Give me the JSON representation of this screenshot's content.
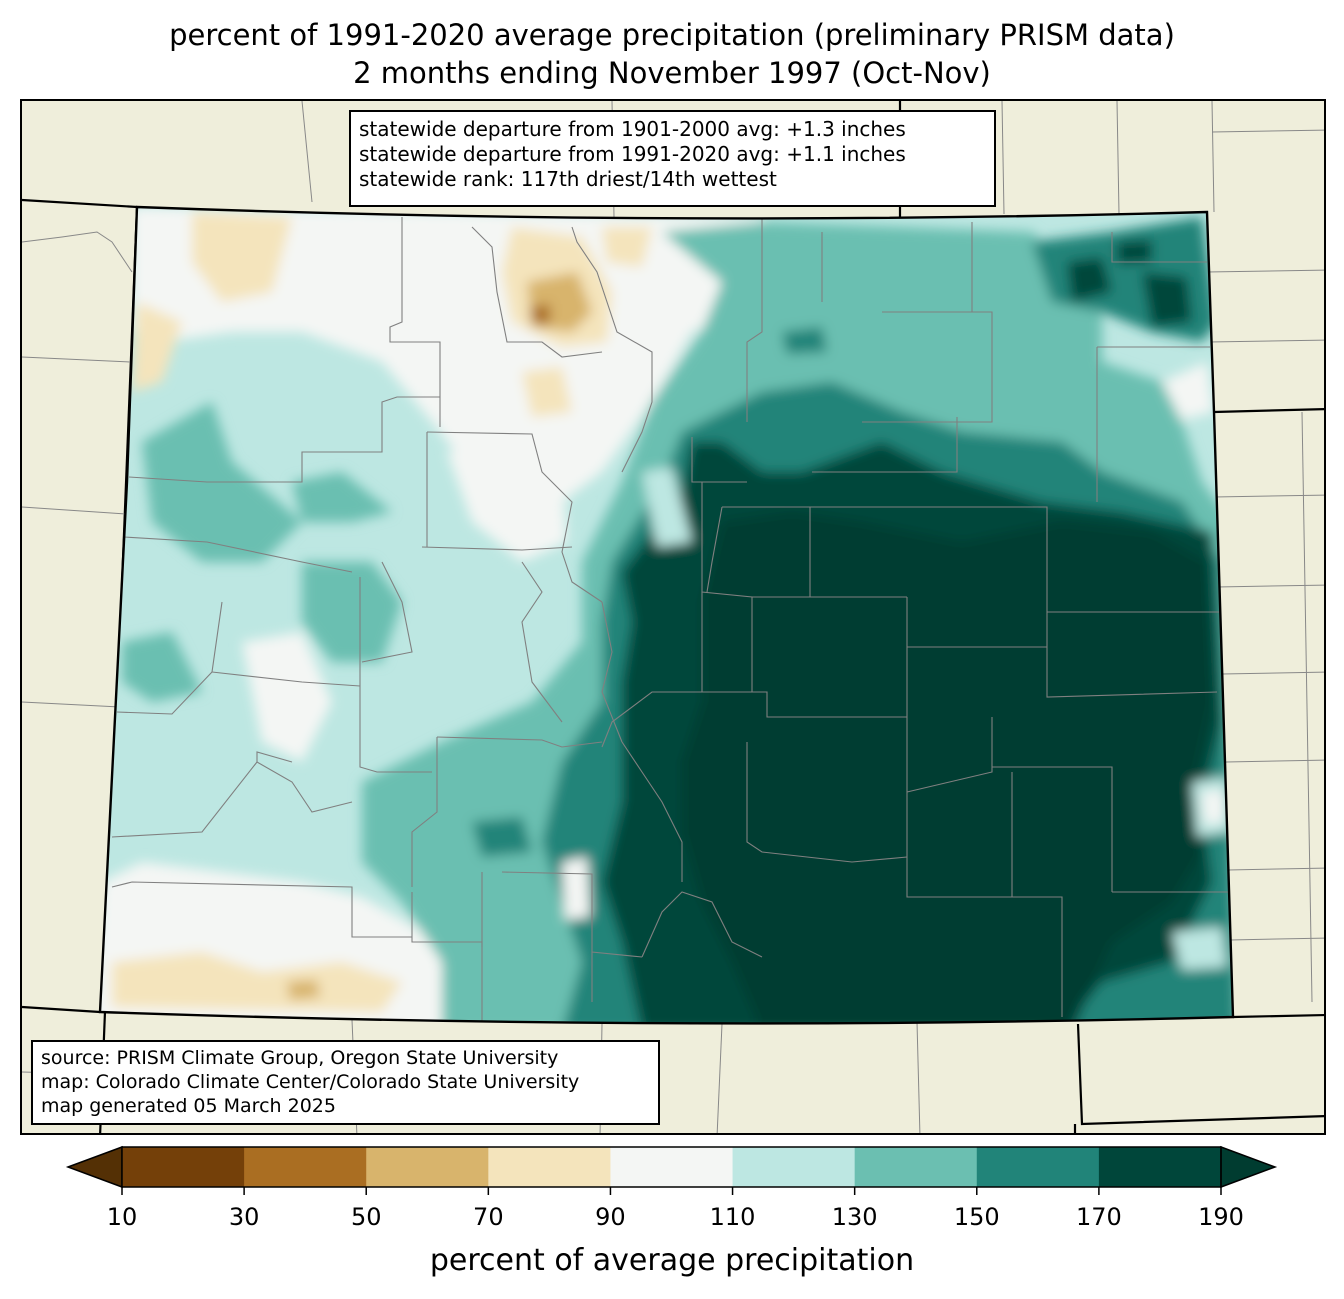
{
  "title": {
    "line1": "percent of 1991-2020 average precipitation (preliminary PRISM data)",
    "line2": "2 months ending November 1997 (Oct-Nov)"
  },
  "stats": {
    "line1": "statewide departure from 1901-2000 avg: +1.3 inches",
    "line2": "statewide departure from 1991-2020 avg: +1.1 inches",
    "line3": "statewide rank: 117th driest/14th wettest"
  },
  "source": {
    "line1": "source: PRISM Climate Group, Oregon State University",
    "line2": "map: Colorado Climate Center/Colorado State University",
    "line3": "map generated 05 March 2025"
  },
  "colorbar": {
    "label": "percent of average precipitation",
    "ticks": [
      "10",
      "30",
      "50",
      "70",
      "90",
      "110",
      "130",
      "150",
      "170",
      "190"
    ],
    "under_color": "#543005",
    "over_color": "#003c30",
    "colors": [
      "#744009",
      "#aa6e22",
      "#d8b46c",
      "#f4e4bc",
      "#f4f6f4",
      "#bde7e2",
      "#6bbfb1",
      "#218479",
      "#00463a"
    ]
  },
  "colors": {
    "background_land": "#efeedb",
    "county_lines": "#888888",
    "state_lines": "#000000"
  }
}
